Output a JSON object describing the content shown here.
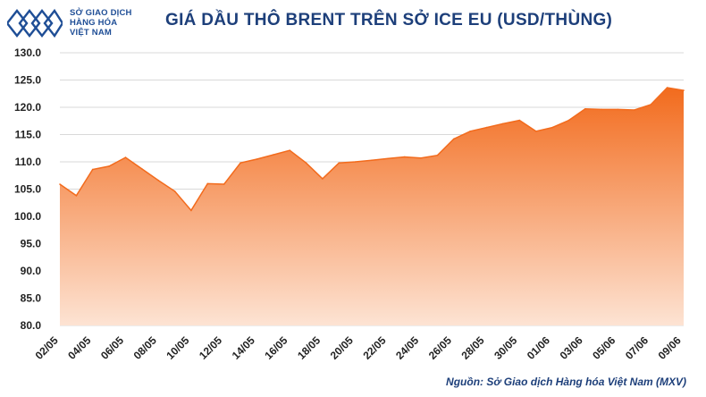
{
  "logo": {
    "line1": "SỞ GIAO DỊCH",
    "line2": "HÀNG HÓA",
    "line3": "VIỆT NAM",
    "icon": "diamond-lattice-logo-icon",
    "color": "#1f4e96"
  },
  "title": "GIÁ DẦU THÔ BRENT TRÊN SỞ ICE EU (USD/THÙNG)",
  "source": "Nguồn: Sở Giao dịch Hàng hóa Việt Nam (MXV)",
  "colors": {
    "title": "#1d3f7a",
    "area_top": "#f26b1d",
    "area_bottom": "#fde3d3",
    "line": "#f26b1d",
    "grid": "#d9d9d9"
  },
  "chart_data": {
    "type": "area",
    "title": "GIÁ DẦU THÔ BRENT TRÊN SỞ ICE EU (USD/THÙNG)",
    "xlabel": "",
    "ylabel": "",
    "ylim": [
      80.0,
      130.0
    ],
    "yticks": [
      "80.0",
      "85.0",
      "90.0",
      "95.0",
      "100.0",
      "105.0",
      "110.0",
      "115.0",
      "120.0",
      "125.0",
      "130.0"
    ],
    "grid": true,
    "xtick_labels": [
      "02/05",
      "04/05",
      "06/05",
      "08/05",
      "10/05",
      "12/05",
      "14/05",
      "16/05",
      "18/05",
      "20/05",
      "22/05",
      "24/05",
      "26/05",
      "28/05",
      "30/05",
      "01/06",
      "03/06",
      "05/06",
      "07/06",
      "09/06"
    ],
    "series": [
      {
        "values": [
          105.9,
          103.8,
          108.6,
          109.2,
          110.8,
          108.7,
          106.6,
          104.6,
          101.1,
          106.0,
          105.9,
          109.8,
          110.5,
          111.3,
          112.1,
          109.8,
          106.9,
          109.8,
          110.0,
          110.3,
          110.6,
          110.9,
          110.7,
          111.2,
          114.2,
          115.6,
          116.3,
          117.0,
          117.6,
          115.6,
          116.3,
          117.6,
          119.7,
          119.6,
          119.6,
          119.5,
          120.5,
          123.6,
          123.1
        ]
      }
    ]
  }
}
